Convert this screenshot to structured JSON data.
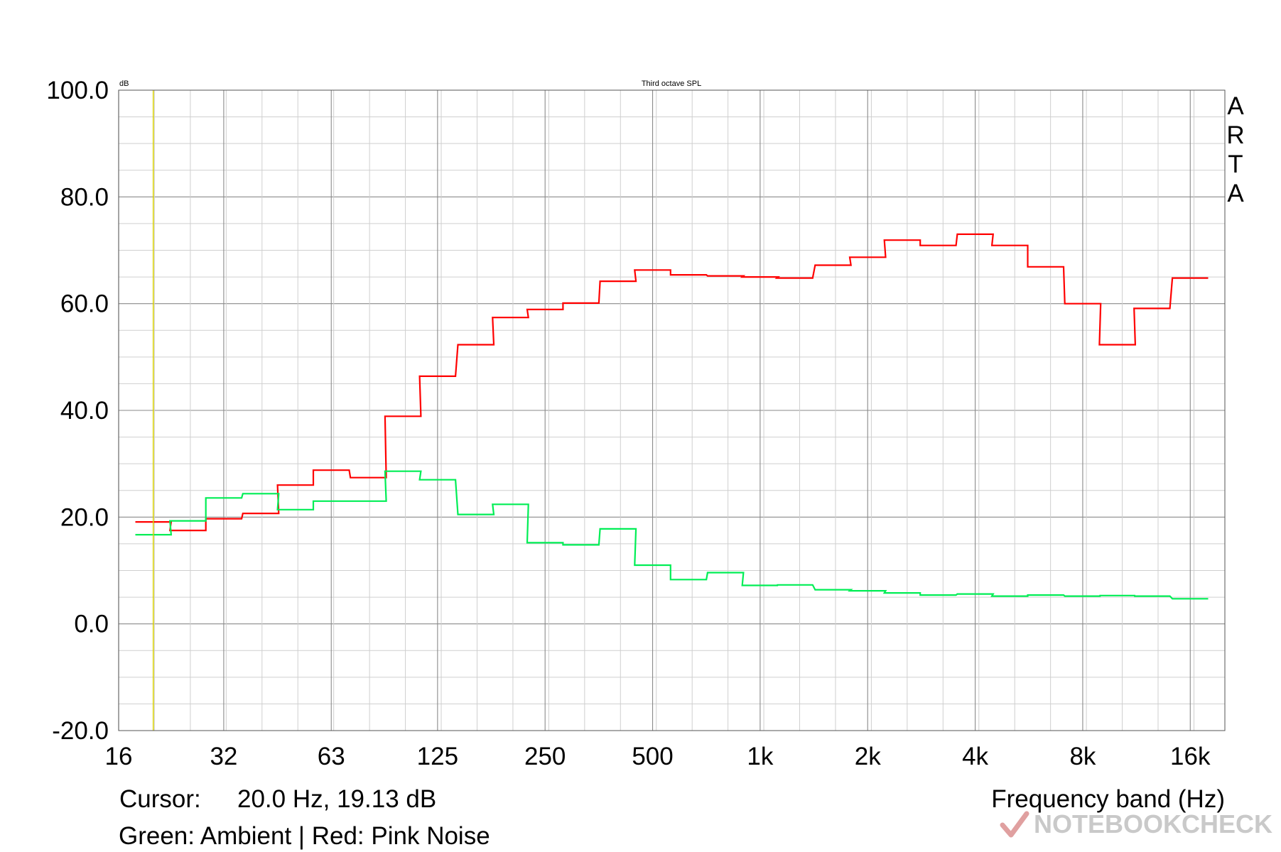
{
  "chart_data": {
    "type": "line",
    "title": "Third octave SPL",
    "ylabel": "dB",
    "xlabel": "Frequency band (Hz)",
    "y_ticks": [
      "100.0",
      "80.0",
      "60.0",
      "40.0",
      "20.0",
      "0.0",
      "-20.0"
    ],
    "ylim": [
      -20,
      100
    ],
    "x_scale": "log",
    "x_tick_labels": [
      "16",
      "32",
      "63",
      "125",
      "250",
      "500",
      "1k",
      "2k",
      "4k",
      "8k",
      "16k"
    ],
    "x_tick_values": [
      16,
      31.5,
      63,
      125,
      250,
      500,
      1000,
      2000,
      4000,
      8000,
      16000
    ],
    "xlim": [
      16,
      20000
    ],
    "cursor_freq": 20,
    "bands": [
      20,
      25,
      31.5,
      40,
      50,
      63,
      80,
      100,
      125,
      160,
      200,
      250,
      315,
      400,
      500,
      630,
      800,
      1000,
      1250,
      1600,
      2000,
      2500,
      3150,
      4000,
      5000,
      6300,
      8000,
      10000,
      12500,
      16000
    ],
    "series": [
      {
        "name": "Pink Noise",
        "color": "#ff0000",
        "values": [
          19.1,
          17.5,
          19.7,
          20.7,
          26.0,
          28.8,
          27.4,
          38.9,
          46.4,
          52.3,
          57.4,
          58.9,
          60.1,
          64.2,
          66.3,
          65.4,
          65.2,
          65.0,
          64.8,
          67.2,
          68.7,
          71.9,
          70.9,
          73.0,
          70.9,
          66.9,
          60.0,
          52.3,
          59.1,
          64.8
        ]
      },
      {
        "name": "Ambient",
        "color": "#00ee55",
        "values": [
          16.7,
          19.3,
          23.6,
          24.4,
          21.4,
          23.0,
          23.0,
          28.6,
          27.0,
          20.5,
          22.4,
          15.2,
          14.8,
          17.8,
          11.0,
          8.3,
          9.6,
          7.2,
          7.3,
          6.4,
          6.2,
          5.8,
          5.4,
          5.6,
          5.2,
          5.4,
          5.2,
          5.3,
          5.2,
          4.7
        ]
      }
    ],
    "grid": true,
    "legend": "bottom"
  },
  "brand_vertical": "ARTA",
  "cursor_label": "Cursor:",
  "cursor_value": "20.0 Hz, 19.13 dB",
  "legend_text": "Green: Ambient | Red: Pink Noise",
  "watermark": "NOTEBOOKCHECK"
}
